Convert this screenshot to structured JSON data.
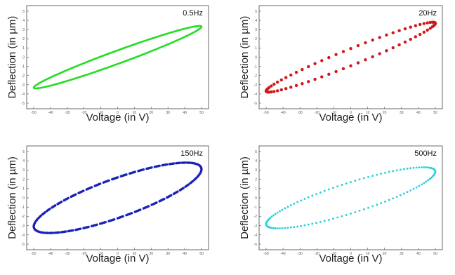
{
  "chart_data": [
    {
      "type": "scatter",
      "freq_label": "0.5Hz",
      "xlabel": "Voltage (in V)",
      "ylabel": "Deflection (in µm)",
      "xlim": [
        -50,
        50
      ],
      "ylim": [
        -5,
        5
      ],
      "x_ticks": [
        "-50",
        "-40",
        "-30",
        "-20",
        "-10",
        "0",
        "10",
        "20",
        "30",
        "40",
        "50"
      ],
      "y_ticks": [
        "5",
        "4",
        "3",
        "2",
        "1",
        "0",
        "-1",
        "-2",
        "-3",
        "-4",
        "-5"
      ],
      "grid": false,
      "color": "#22dd22",
      "marker": "line",
      "loop": {
        "amp": 50,
        "a": 3.4,
        "phase": 0.22,
        "cusp": 0.35,
        "n": 160
      }
    },
    {
      "type": "scatter",
      "freq_label": "20Hz",
      "xlabel": "Voltage (in V)",
      "ylabel": "Deflection (in µm)",
      "xlim": [
        -50,
        50
      ],
      "ylim": [
        -5,
        5
      ],
      "x_ticks": [
        "-50",
        "-40",
        "-30",
        "-20",
        "-10",
        "0",
        "10",
        "20",
        "30",
        "40",
        "50"
      ],
      "y_ticks": [
        "5",
        "4",
        "3",
        "2",
        "1",
        "0",
        "-1",
        "-2",
        "-3",
        "-4",
        "-5"
      ],
      "grid": false,
      "color": "#d01818",
      "marker": "dot",
      "loop": {
        "amp": 50,
        "a": 3.8,
        "phase": 0.25,
        "cusp": 0,
        "n": 72
      }
    },
    {
      "type": "scatter",
      "freq_label": "150Hz",
      "xlabel": "Voltage (in V)",
      "ylabel": "Deflection (in µm)",
      "xlim": [
        -50,
        50
      ],
      "ylim": [
        -5,
        5
      ],
      "x_ticks": [
        "-50",
        "-40",
        "-30",
        "-20",
        "-10",
        "0",
        "10",
        "20",
        "30",
        "40",
        "50"
      ],
      "y_ticks": [
        "5",
        "4",
        "3",
        "2",
        "1",
        "0",
        "-1",
        "-2",
        "-3",
        "-4",
        "-5"
      ],
      "grid": false,
      "color": "#1a22b8",
      "marker": "dash",
      "loop": {
        "amp": 50,
        "a": 3.8,
        "phase": 0.62,
        "cusp": 0,
        "n": 60
      }
    },
    {
      "type": "scatter",
      "freq_label": "500Hz",
      "xlabel": "Voltage (in V)",
      "ylabel": "Deflection (in µm)",
      "xlim": [
        -50,
        50
      ],
      "ylim": [
        -5,
        5
      ],
      "x_ticks": [
        "-50",
        "-40",
        "-30",
        "-20",
        "-10",
        "0",
        "10",
        "20",
        "30",
        "40",
        "50"
      ],
      "y_ticks": [
        "5",
        "4",
        "3",
        "2",
        "1",
        "0",
        "-1",
        "-2",
        "-3",
        "-4",
        "-5"
      ],
      "grid": false,
      "color": "#22d0d8",
      "marker": "dot-small",
      "loop": {
        "amp": 50,
        "a": -3.3,
        "phase": 2.6,
        "cusp": 0,
        "n": 120
      }
    }
  ]
}
